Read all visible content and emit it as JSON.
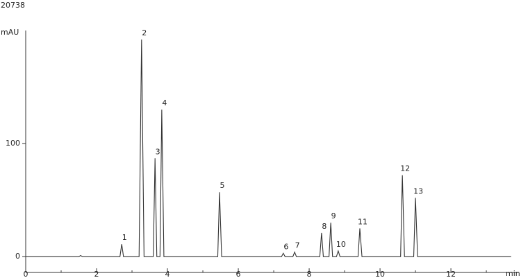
{
  "header": "20738",
  "chart_data": {
    "type": "line",
    "y_label": "mAU",
    "x_label": "min",
    "xlim": [
      0,
      13.9
    ],
    "ylim": [
      -14,
      200
    ],
    "xticks": [
      0,
      2,
      4,
      6,
      8,
      10,
      12
    ],
    "xminorticks": [
      1,
      3,
      5,
      7,
      9,
      11,
      13
    ],
    "yticks": [
      0,
      100
    ],
    "series": [
      {
        "color": "#333333",
        "x": [
          0,
          1.5,
          1.55,
          1.6,
          2.66,
          2.71,
          2.76,
          3.2,
          3.27,
          3.34,
          3.6,
          3.65,
          3.7,
          3.79,
          3.84,
          3.9,
          5.42,
          5.47,
          5.53,
          7.22,
          7.27,
          7.32,
          7.54,
          7.59,
          7.64,
          8.3,
          8.35,
          8.4,
          8.56,
          8.61,
          8.66,
          8.77,
          8.82,
          8.87,
          9.38,
          9.43,
          9.49,
          10.58,
          10.63,
          10.69,
          10.95,
          11.0,
          11.06,
          13.7
        ],
        "values": [
          0,
          0,
          1,
          0,
          0,
          11,
          0,
          0,
          192,
          0,
          0,
          87,
          0,
          0,
          130,
          0,
          0,
          57,
          0,
          0,
          3,
          0,
          0,
          4,
          0,
          0,
          21,
          0,
          0,
          30,
          0,
          0,
          5,
          0,
          0,
          25,
          0,
          0,
          72,
          0,
          0,
          52,
          0,
          0
        ]
      }
    ],
    "annotations": [
      {
        "text": "1",
        "x": 2.71,
        "y": 11
      },
      {
        "text": "2",
        "x": 3.27,
        "y": 192
      },
      {
        "text": "3",
        "x": 3.65,
        "y": 87
      },
      {
        "text": "4",
        "x": 3.84,
        "y": 130
      },
      {
        "text": "5",
        "x": 5.47,
        "y": 57
      },
      {
        "text": "6",
        "x": 7.27,
        "y": 3
      },
      {
        "text": "7",
        "x": 7.59,
        "y": 4
      },
      {
        "text": "8",
        "x": 8.35,
        "y": 21
      },
      {
        "text": "9",
        "x": 8.61,
        "y": 30
      },
      {
        "text": "10",
        "x": 8.82,
        "y": 5
      },
      {
        "text": "11",
        "x": 9.43,
        "y": 25
      },
      {
        "text": "12",
        "x": 10.63,
        "y": 72
      },
      {
        "text": "13",
        "x": 11.0,
        "y": 52
      }
    ]
  }
}
